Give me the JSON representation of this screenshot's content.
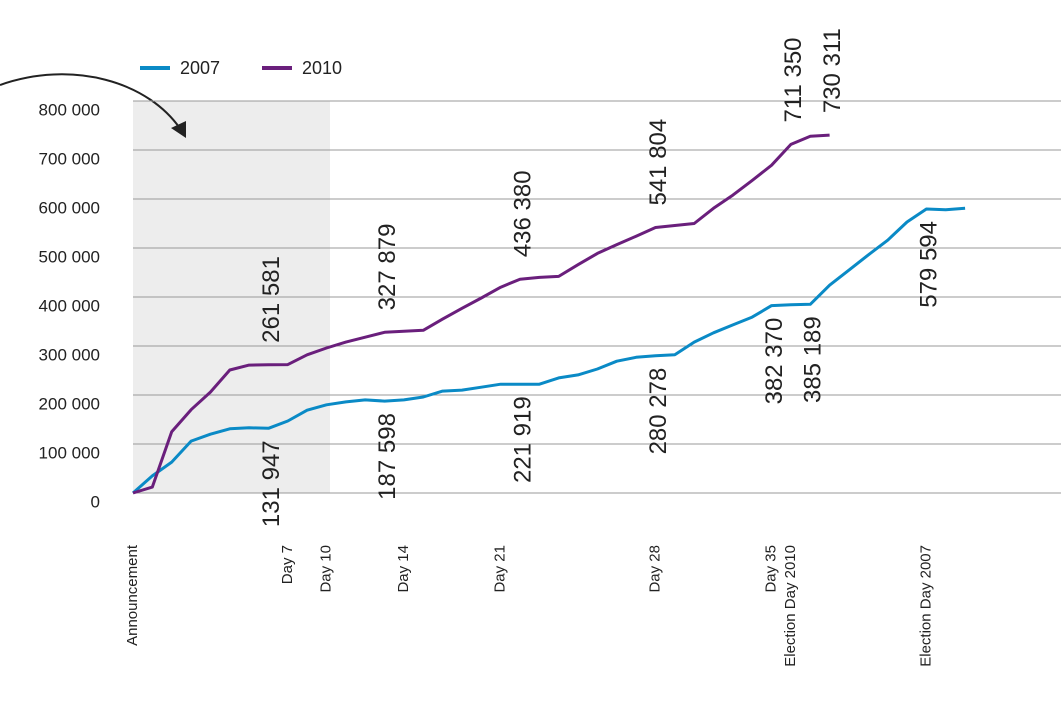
{
  "chart_data": {
    "type": "line",
    "categories": [
      "Announcement",
      null,
      null,
      null,
      null,
      null,
      null,
      null,
      "Day 7",
      null,
      "Day 10",
      null,
      null,
      null,
      "Day 14",
      null,
      null,
      null,
      null,
      "Day 21",
      null,
      null,
      null,
      null,
      null,
      null,
      null,
      "Day 28",
      null,
      null,
      null,
      null,
      null,
      "Day 35",
      "Election Day 2010",
      null,
      null,
      null,
      null,
      null,
      null,
      "Election Day 2007",
      null,
      null
    ],
    "series": [
      {
        "name": "2007",
        "color": "#0a8ac6",
        "values": [
          0,
          35000,
          63000,
          106000,
          120000,
          131000,
          133000,
          131947,
          147000,
          169000,
          180000,
          186000,
          190000,
          187598,
          190000,
          196000,
          208000,
          210000,
          216000,
          222000,
          221919,
          222000,
          235000,
          241000,
          253000,
          269000,
          277000,
          280278,
          282000,
          308000,
          327000,
          343000,
          359000,
          382370,
          384000,
          385189,
          424000,
          455000,
          486000,
          516000,
          553000,
          579594,
          578000,
          581000
        ],
        "value_labels": [
          null,
          null,
          null,
          null,
          null,
          null,
          null,
          "131 947",
          null,
          null,
          null,
          null,
          null,
          "187 598",
          null,
          null,
          null,
          null,
          null,
          null,
          "221 919",
          null,
          null,
          null,
          null,
          null,
          null,
          "280 278",
          null,
          null,
          null,
          null,
          null,
          "382 370",
          null,
          "385 189",
          null,
          null,
          null,
          null,
          null,
          "579 594",
          null,
          null
        ]
      },
      {
        "name": "2010",
        "color": "#6a1f7c",
        "values": [
          0,
          12000,
          125000,
          170000,
          206000,
          251000,
          261000,
          261581,
          262000,
          282000,
          296000,
          308000,
          318000,
          327879,
          330000,
          332000,
          355000,
          377000,
          398000,
          420000,
          436380,
          440000,
          442000,
          466000,
          489000,
          507000,
          524000,
          541804,
          546000,
          550000,
          581000,
          608000,
          638000,
          669000,
          711350,
          728000,
          730311,
          null,
          null,
          null,
          null,
          null,
          null,
          null
        ],
        "value_labels": [
          null,
          null,
          null,
          null,
          null,
          null,
          null,
          "261 581",
          null,
          null,
          null,
          null,
          null,
          "327 879",
          null,
          null,
          null,
          null,
          null,
          null,
          "436 380",
          null,
          null,
          null,
          null,
          null,
          null,
          "541 804",
          null,
          null,
          null,
          null,
          null,
          null,
          "711 350",
          null,
          "730 311",
          null,
          null,
          null,
          null,
          null,
          null,
          null
        ]
      }
    ],
    "ylim": [
      0,
      800000
    ],
    "yticks": [
      0,
      {
        "value": 100000,
        "label": "100 000"
      },
      {
        "value": 200000,
        "label": "200 000"
      },
      {
        "value": 300000,
        "label": "300 000"
      },
      {
        "value": 400000,
        "label": "400 000"
      },
      {
        "value": 500000,
        "label": "500 000"
      },
      {
        "value": 600000,
        "label": "600 000"
      },
      {
        "value": 700000,
        "label": "700 000"
      },
      {
        "value": 800000,
        "label": "800 000"
      }
    ],
    "grid": true
  }
}
